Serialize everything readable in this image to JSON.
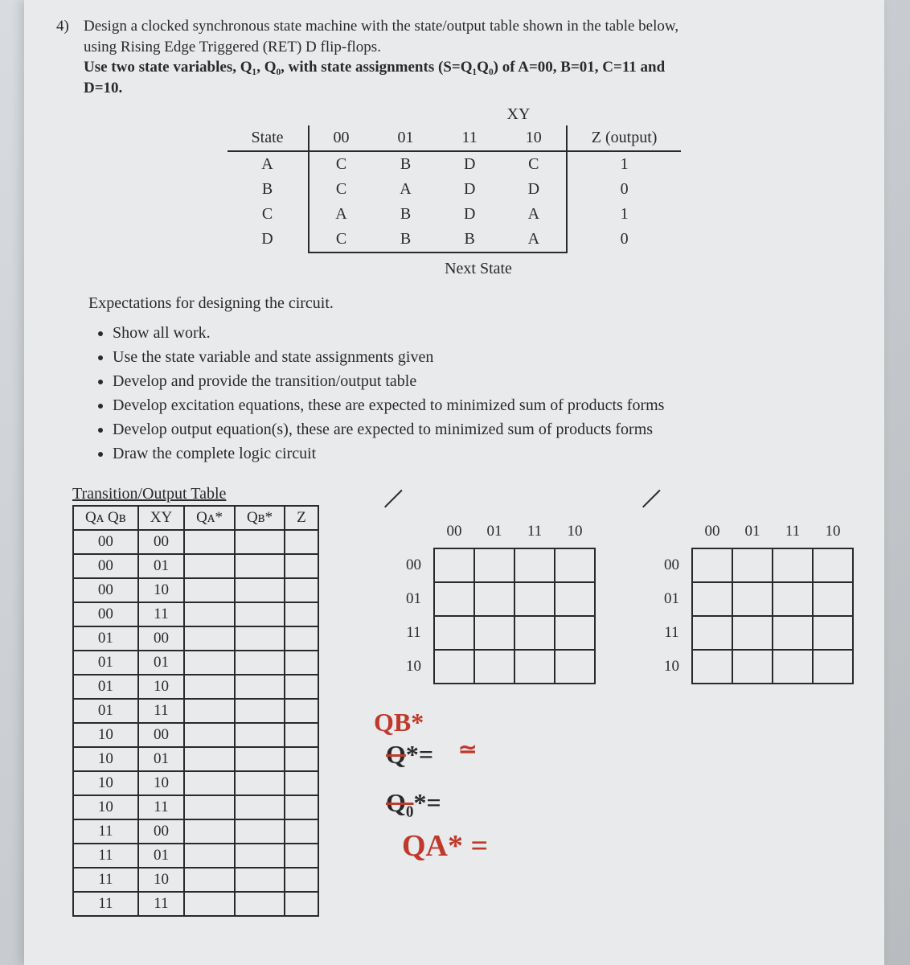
{
  "problem": {
    "number": "4)",
    "text_line1": "Design a clocked synchronous state machine with the state/output table shown in the table below,",
    "text_line2": "using Rising Edge Triggered (RET) D flip-flops.",
    "text_line3": "Use two state variables, Q₁, Q₀, with state assignments (S=Q₁Q₀) of A=00, B=01, C=11 and",
    "text_line4": "D=10."
  },
  "state_table": {
    "xy_header": "XY",
    "columns": [
      "State",
      "00",
      "01",
      "11",
      "10",
      "Z (output)"
    ],
    "rows": [
      [
        "A",
        "C",
        "B",
        "D",
        "C",
        "1"
      ],
      [
        "B",
        "C",
        "A",
        "D",
        "D",
        "0"
      ],
      [
        "C",
        "A",
        "B",
        "D",
        "A",
        "1"
      ],
      [
        "D",
        "C",
        "B",
        "B",
        "A",
        "0"
      ]
    ],
    "below_label": "Next State"
  },
  "expectations_title": "Expectations for designing the circuit.",
  "bullets": [
    "Show all work.",
    "Use the state variable and state assignments given",
    "Develop and provide the transition/output table",
    "Develop excitation equations, these are expected to minimized sum of products forms",
    "Develop output equation(s), these are expected to minimized sum of products forms",
    "Draw the complete logic circuit"
  ],
  "transition": {
    "title": "Transition/Output Table",
    "headers": [
      "Qᴀ Qʙ",
      "XY",
      "Qᴀ*",
      "Qʙ*",
      "Z"
    ],
    "rows": [
      [
        "00",
        "00",
        "",
        "",
        ""
      ],
      [
        "00",
        "01",
        "",
        "",
        ""
      ],
      [
        "00",
        "10",
        "",
        "",
        ""
      ],
      [
        "00",
        "11",
        "",
        "",
        ""
      ],
      [
        "01",
        "00",
        "",
        "",
        ""
      ],
      [
        "01",
        "01",
        "",
        "",
        ""
      ],
      [
        "01",
        "10",
        "",
        "",
        ""
      ],
      [
        "01",
        "11",
        "",
        "",
        ""
      ],
      [
        "10",
        "00",
        "",
        "",
        ""
      ],
      [
        "10",
        "01",
        "",
        "",
        ""
      ],
      [
        "10",
        "10",
        "",
        "",
        ""
      ],
      [
        "10",
        "11",
        "",
        "",
        ""
      ],
      [
        "11",
        "00",
        "",
        "",
        ""
      ],
      [
        "11",
        "01",
        "",
        "",
        ""
      ],
      [
        "11",
        "10",
        "",
        "",
        ""
      ],
      [
        "11",
        "11",
        "",
        "",
        ""
      ]
    ]
  },
  "kmap": {
    "col_labels": [
      "00",
      "01",
      "11",
      "10"
    ],
    "row_labels": [
      "00",
      "01",
      "11",
      "10"
    ]
  },
  "handwriting": {
    "qb_star": "QB*",
    "q_star_eq": "Q*= ",
    "tilde": "≃",
    "q0_star": "Q₀*=",
    "qa_star": "QA* ="
  },
  "colors": {
    "text": "#2a2a2a",
    "page_bg": "#e8eaec",
    "hand": "#c0392b",
    "border": "#2a2a2a"
  }
}
